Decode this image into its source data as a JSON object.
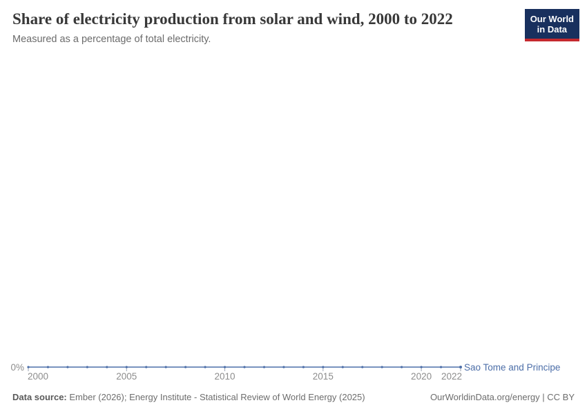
{
  "header": {
    "title": "Share of electricity production from solar and wind, 2000 to 2022",
    "subtitle": "Measured as a percentage of total electricity."
  },
  "logo": {
    "line1": "Our World",
    "line2": "in Data",
    "bg_color": "#18305e",
    "accent_color": "#c5292e"
  },
  "chart_data": {
    "type": "line",
    "title": "Share of electricity production from solar and wind, 2000 to 2022",
    "subtitle": "Measured as a percentage of total electricity.",
    "x": [
      2000,
      2001,
      2002,
      2003,
      2004,
      2005,
      2006,
      2007,
      2008,
      2009,
      2010,
      2011,
      2012,
      2013,
      2014,
      2015,
      2016,
      2017,
      2018,
      2019,
      2020,
      2021,
      2022
    ],
    "series": [
      {
        "name": "Sao Tome and Principe",
        "values": [
          0,
          0,
          0,
          0,
          0,
          0,
          0,
          0,
          0,
          0,
          0,
          0,
          0,
          0,
          0,
          0,
          0,
          0,
          0,
          0,
          0,
          0,
          0
        ]
      }
    ],
    "x_ticks": [
      2000,
      2005,
      2010,
      2015,
      2020,
      2022
    ],
    "y_ticks": [
      "0%"
    ],
    "y_axis_label": "0%",
    "unit": "%",
    "grid": false,
    "legend_position": "right-of-line-end",
    "colors": {
      "line": "#4c6ea8",
      "entity_label": "#4c6ea8",
      "axis_text": "#8c8c8c",
      "tick": "#9aa3b2"
    }
  },
  "footer": {
    "source_label": "Data source:",
    "source_text": "Ember (2026); Energy Institute - Statistical Review of World Energy (2025)",
    "right_text": "OurWorldinData.org/energy | CC BY"
  }
}
